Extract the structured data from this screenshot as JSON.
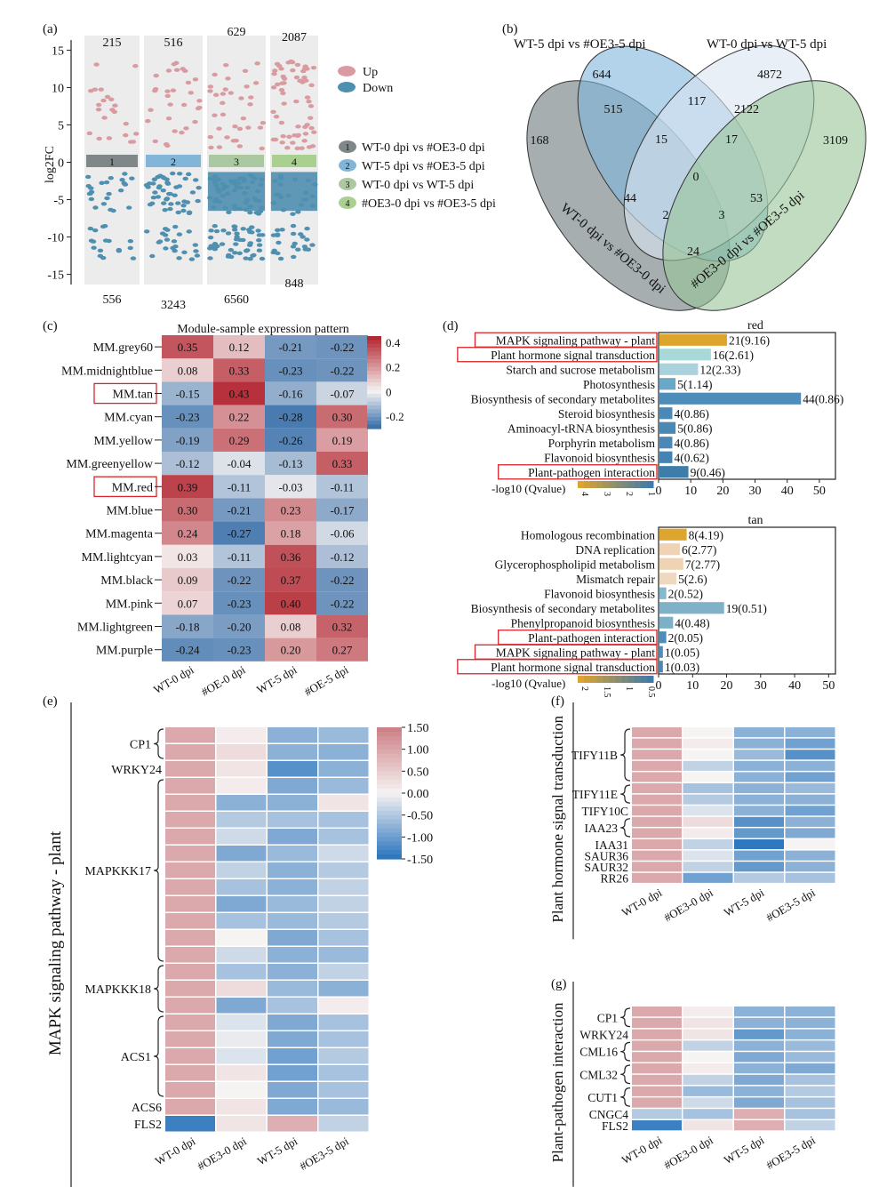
{
  "panels": {
    "a": "(a)",
    "b": "(b)",
    "c": "(c)",
    "d": "(d)",
    "e": "(e)",
    "f": "(f)",
    "g": "(g)"
  },
  "chart_data": [
    {
      "id": "a",
      "type": "scatter",
      "ylabel": "log2FC",
      "ylim": [
        -16,
        16
      ],
      "yticks": [
        15,
        10,
        5,
        0,
        -5,
        -10,
        -15
      ],
      "up_counts": [
        "215",
        "516",
        "629",
        "2087"
      ],
      "down_counts": [
        "556",
        "3243",
        "6560",
        "848"
      ],
      "groups": [
        "1",
        "2",
        "3",
        "4"
      ],
      "group_colors": [
        "#7f8788",
        "#82b6d9",
        "#aac9a0",
        "#a9d08e"
      ],
      "up_color": "#d99aa0",
      "down_color": "#4f8fb0",
      "legend_updown": [
        "Up",
        "Down"
      ],
      "legend_groups": [
        "WT-0 dpi vs #OE3-0 dpi",
        "WT-5 dpi vs #OE3-5 dpi",
        "WT-0 dpi vs WT-5 dpi",
        "#OE3-0 dpi vs #OE3-5 dpi"
      ]
    },
    {
      "id": "b",
      "type": "venn",
      "sets": [
        {
          "label": "WT-5 dpi vs #OE3-5 dpi",
          "color": "#7fb6dc"
        },
        {
          "label": "WT-0 dpi vs WT-5 dpi",
          "color": "#dbe4f1"
        },
        {
          "label": "WT-0 dpi vs #OE3-0 dpi",
          "color": "#6b7879"
        },
        {
          "label": "#OE3-0 dpi vs #OE3-5 dpi",
          "color": "#98c597"
        }
      ],
      "regions": [
        "644",
        "4872",
        "168",
        "3109",
        "515",
        "117",
        "2122",
        "15",
        "17",
        "0",
        "44",
        "53",
        "2",
        "3",
        "24"
      ]
    },
    {
      "id": "c",
      "type": "heatmap",
      "title": "Module-sample expression pattern",
      "rows": [
        "MM.grey60",
        "MM.midnightblue",
        "MM.tan",
        "MM.cyan",
        "MM.yellow",
        "MM.greenyellow",
        "MM.red",
        "MM.blue",
        "MM.magenta",
        "MM.lightcyan",
        "MM.black",
        "MM.pink",
        "MM.lightgreen",
        "MM.purple"
      ],
      "highlight_rows": [
        "MM.tan",
        "MM.red"
      ],
      "cols": [
        "WT-0 dpi",
        "#OE-0 dpi",
        "WT-5 dpi",
        "#OE-5 dpi"
      ],
      "values": [
        [
          0.35,
          0.12,
          -0.21,
          -0.22
        ],
        [
          0.08,
          0.33,
          -0.23,
          -0.22
        ],
        [
          -0.15,
          0.43,
          -0.16,
          -0.07
        ],
        [
          -0.23,
          0.22,
          -0.28,
          0.3
        ],
        [
          -0.19,
          0.29,
          -0.26,
          0.19
        ],
        [
          -0.12,
          -0.04,
          -0.13,
          0.33
        ],
        [
          0.39,
          -0.11,
          -0.03,
          -0.11
        ],
        [
          0.3,
          -0.21,
          0.23,
          -0.17
        ],
        [
          0.24,
          -0.27,
          0.18,
          -0.06
        ],
        [
          0.03,
          -0.11,
          0.36,
          -0.12
        ],
        [
          0.09,
          -0.22,
          0.37,
          -0.22
        ],
        [
          0.07,
          -0.23,
          0.4,
          -0.22
        ],
        [
          -0.18,
          -0.2,
          0.08,
          0.32
        ],
        [
          -0.24,
          -0.23,
          0.2,
          0.27
        ]
      ],
      "labels": [
        [
          "0.35",
          "0.12",
          "-0.21",
          "-0.22"
        ],
        [
          "0.08",
          "0.33",
          "-0.23",
          "-0.22"
        ],
        [
          "-0.15",
          "0.43",
          "-0.16",
          "-0.07"
        ],
        [
          "-0.23",
          "0.22",
          "-0.28",
          "0.30"
        ],
        [
          "-0.19",
          "0.29",
          "-0.26",
          "0.19"
        ],
        [
          "-0.12",
          "-0.04",
          "-0.13",
          "0.33"
        ],
        [
          "0.39",
          "-0.11",
          "-0.03",
          "-0.11"
        ],
        [
          "0.30",
          "-0.21",
          "0.23",
          "-0.17"
        ],
        [
          "0.24",
          "-0.27",
          "0.18",
          "-0.06"
        ],
        [
          "0.03",
          "-0.11",
          "0.36",
          "-0.12"
        ],
        [
          "0.09",
          "-0.22",
          "0.37",
          "-0.22"
        ],
        [
          "0.07",
          "-0.23",
          "0.40",
          "-0.22"
        ],
        [
          "-0.18",
          "-0.20",
          "0.08",
          "0.32"
        ],
        [
          "-0.24",
          "-0.23",
          "0.20",
          "0.27"
        ]
      ],
      "colorbar_ticks": [
        "0.4",
        "0.2",
        "0",
        "-0.2"
      ],
      "colorbar_values": [
        0.4,
        0.2,
        0,
        -0.2
      ],
      "vmin": -0.3,
      "vmax": 0.45
    },
    {
      "id": "d-red",
      "type": "bar",
      "title": "red",
      "categories": [
        "MAPK signaling pathway - plant",
        "Plant hormone signal transduction",
        "Starch and sucrose metabolism",
        "Photosynthesis",
        "Biosynthesis of secondary metabolites",
        "Steroid biosynthesis",
        "Aminoacyl-tRNA biosynthesis",
        "Porphyrin metabolism",
        "Flavonoid biosynthesis",
        "Plant-pathogen interaction"
      ],
      "highlight": [
        "MAPK signaling pathway - plant",
        "Plant hormone signal transduction",
        "Plant-pathogen interaction"
      ],
      "values": [
        21,
        16,
        12,
        5,
        44,
        4,
        5,
        4,
        4,
        9
      ],
      "qvalues": [
        9.16,
        2.61,
        2.33,
        1.14,
        0.86,
        0.86,
        0.86,
        0.86,
        0.62,
        0.46
      ],
      "bar_labels": [
        "21(9.16)",
        "16(2.61)",
        "12(2.33)",
        "5(1.14)",
        "44(0.86)",
        "4(0.86)",
        "5(0.86)",
        "4(0.86)",
        "4(0.62)",
        "9(0.46)"
      ],
      "xlim": [
        0,
        55
      ],
      "xticks": [
        "0",
        "10",
        "20",
        "30",
        "40",
        "50"
      ],
      "legend_label": "-log10 (Qvalue)",
      "legend_ticks": [
        "4",
        "3",
        "2",
        "1"
      ]
    },
    {
      "id": "d-tan",
      "type": "bar",
      "title": "tan",
      "categories": [
        "Homologous recombination",
        "DNA replication",
        "Glycerophospholipid metabolism",
        "Mismatch repair",
        "Flavonoid biosynthesis",
        "Biosynthesis of secondary metabolites",
        "Phenylpropanoid biosynthesis",
        "Plant-pathogen interaction",
        "MAPK signaling pathway - plant",
        "Plant hormone signal transduction"
      ],
      "highlight": [
        "Plant-pathogen interaction",
        "MAPK signaling pathway - plant",
        "Plant hormone signal transduction"
      ],
      "values": [
        8,
        6,
        7,
        5,
        2,
        19,
        4,
        2,
        1,
        1
      ],
      "qvalues": [
        4.19,
        2.77,
        2.77,
        2.6,
        0.52,
        0.51,
        0.48,
        0.05,
        0.05,
        0.03
      ],
      "bar_labels": [
        "8(4.19)",
        "6(2.77)",
        "7(2.77)",
        "5(2.6)",
        "2(0.52)",
        "19(0.51)",
        "4(0.48)",
        "2(0.05)",
        "1(0.05)",
        "1(0.03)"
      ],
      "xlim": [
        0,
        52
      ],
      "xticks": [
        "0",
        "10",
        "20",
        "30",
        "40",
        "50"
      ],
      "legend_label": "-log10 (Qvalue)",
      "legend_ticks": [
        "2",
        "1.5",
        "1",
        "0.5"
      ]
    },
    {
      "id": "e",
      "type": "heatmap",
      "side_label": "MAPK signaling pathway - plant",
      "cols": [
        "WT-0 dpi",
        "#OE3-0 dpi",
        "WT-5 dpi",
        "#OE3-5 dpi"
      ],
      "genes": [
        {
          "name": "CP1",
          "rows": 2
        },
        {
          "name": "WRKY24",
          "rows": 1
        },
        {
          "name": "MAPKKK17",
          "rows": 11
        },
        {
          "name": "MAPKKK18",
          "rows": 3
        },
        {
          "name": "ACS1",
          "rows": 5
        },
        {
          "name": "ACS6",
          "rows": 1
        },
        {
          "name": "FLS2",
          "rows": 1
        }
      ],
      "values": [
        [
          1.0,
          0.1,
          -0.8,
          -0.7
        ],
        [
          1.0,
          0.3,
          -0.8,
          -0.8
        ],
        [
          1.0,
          0.2,
          -1.2,
          -0.8
        ],
        [
          1.0,
          0.1,
          -0.9,
          -0.7
        ],
        [
          1.0,
          -0.8,
          -0.8,
          0.2
        ],
        [
          1.0,
          -0.5,
          -0.6,
          -0.6
        ],
        [
          1.0,
          -0.3,
          -0.9,
          -0.6
        ],
        [
          1.0,
          -0.9,
          -0.7,
          -0.3
        ],
        [
          1.0,
          -0.4,
          -0.8,
          -0.5
        ],
        [
          1.0,
          -0.6,
          -0.8,
          -0.4
        ],
        [
          1.0,
          -0.9,
          -0.7,
          -0.4
        ],
        [
          1.0,
          -0.6,
          -0.7,
          -0.5
        ],
        [
          1.0,
          0.0,
          -0.9,
          -0.6
        ],
        [
          1.0,
          -0.3,
          -0.8,
          -0.7
        ],
        [
          1.0,
          -0.6,
          -0.8,
          -0.4
        ],
        [
          1.0,
          0.3,
          -0.7,
          -0.8
        ],
        [
          1.0,
          -0.9,
          -0.6,
          0.1
        ],
        [
          1.0,
          -0.2,
          -0.9,
          -0.6
        ],
        [
          1.0,
          -0.1,
          -0.9,
          -0.6
        ],
        [
          1.0,
          -0.2,
          -1.0,
          -0.5
        ],
        [
          1.0,
          0.2,
          -1.0,
          -0.6
        ],
        [
          1.0,
          0.0,
          -0.9,
          -0.6
        ],
        [
          1.0,
          0.2,
          -0.9,
          -0.7
        ],
        [
          -1.4,
          0.2,
          0.9,
          -0.4
        ]
      ],
      "colorbar_ticks": [
        "1.50",
        "1.00",
        "0.50",
        "0.00",
        "-0.50",
        "-1.00",
        "-1.50"
      ],
      "colorbar_values": [
        1.5,
        1.0,
        0.5,
        0.0,
        -0.5,
        -1.0,
        -1.5
      ],
      "vmin": -1.5,
      "vmax": 1.5
    },
    {
      "id": "f",
      "type": "heatmap",
      "side_label": "Plant hormone signal transduction",
      "cols": [
        "WT-0 dpi",
        "#OE3-0 dpi",
        "WT-5 dpi",
        "#OE3-5 dpi"
      ],
      "genes": [
        {
          "name": "TIFY11B",
          "rows": 5
        },
        {
          "name": "TIFY11E",
          "rows": 2
        },
        {
          "name": "TIFY10C",
          "rows": 1
        },
        {
          "name": "IAA23",
          "rows": 2
        },
        {
          "name": "IAA31",
          "rows": 1
        },
        {
          "name": "SAUR36",
          "rows": 1
        },
        {
          "name": "SAUR32",
          "rows": 1
        },
        {
          "name": "RR26",
          "rows": 1
        }
      ],
      "values": [
        [
          1.0,
          0.0,
          -0.8,
          -0.8
        ],
        [
          1.0,
          0.1,
          -0.8,
          -1.0
        ],
        [
          1.0,
          0.0,
          -0.7,
          -1.2
        ],
        [
          1.0,
          -0.4,
          -0.8,
          -0.8
        ],
        [
          1.0,
          0.0,
          -0.8,
          -1.0
        ],
        [
          1.0,
          -0.6,
          -0.8,
          -0.7
        ],
        [
          1.0,
          -0.5,
          -0.8,
          -0.8
        ],
        [
          1.0,
          -0.2,
          -0.8,
          -1.0
        ],
        [
          1.0,
          0.3,
          -1.2,
          -0.8
        ],
        [
          1.0,
          0.1,
          -1.1,
          -0.9
        ],
        [
          1.0,
          -0.4,
          -1.5,
          0.0
        ],
        [
          1.0,
          -0.2,
          -1.0,
          -0.8
        ],
        [
          1.0,
          -0.4,
          -1.1,
          -0.8
        ],
        [
          1.0,
          -1.0,
          -0.5,
          -0.6
        ]
      ],
      "vmin": -1.5,
      "vmax": 1.5
    },
    {
      "id": "g",
      "type": "heatmap",
      "side_label": "Plant-pathogen interaction",
      "cols": [
        "WT-0 dpi",
        "#OE3-0 dpi",
        "WT-5 dpi",
        "#OE3-5 dpi"
      ],
      "genes": [
        {
          "name": "CP1",
          "rows": 2
        },
        {
          "name": "WRKY24",
          "rows": 1
        },
        {
          "name": "CML16",
          "rows": 2
        },
        {
          "name": "CML32",
          "rows": 2
        },
        {
          "name": "CUT1",
          "rows": 2
        },
        {
          "name": "CNGC4",
          "rows": 1
        },
        {
          "name": "FLS2",
          "rows": 1
        }
      ],
      "values": [
        [
          1.0,
          0.1,
          -0.8,
          -0.8
        ],
        [
          1.0,
          0.2,
          -0.8,
          -0.8
        ],
        [
          1.0,
          0.2,
          -1.1,
          -0.8
        ],
        [
          1.0,
          -0.4,
          -0.8,
          -0.7
        ],
        [
          1.0,
          0.0,
          -0.9,
          -0.7
        ],
        [
          1.0,
          0.1,
          -0.8,
          -0.9
        ],
        [
          1.0,
          -0.4,
          -0.9,
          -0.6
        ],
        [
          1.0,
          -0.7,
          -0.8,
          -0.5
        ],
        [
          1.0,
          -0.3,
          -0.9,
          -0.6
        ],
        [
          -0.5,
          -0.6,
          0.9,
          -0.6
        ],
        [
          -1.4,
          0.2,
          0.9,
          -0.4
        ]
      ],
      "vmin": -1.5,
      "vmax": 1.5
    }
  ]
}
